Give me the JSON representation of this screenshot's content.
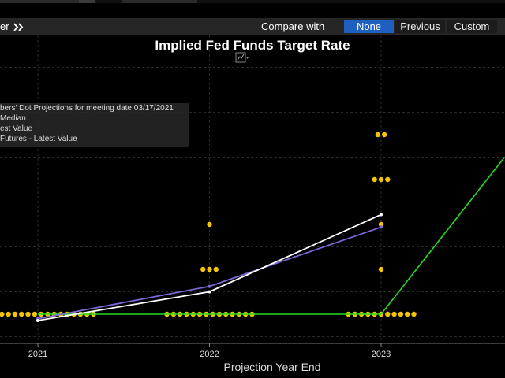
{
  "toolbar": {
    "left_text": "er",
    "nav_icon": "double-chevron-right-icon",
    "compare_label": "Compare with",
    "options": [
      {
        "label": "None",
        "active": true
      },
      {
        "label": "Previous",
        "active": false
      },
      {
        "label": "Custom",
        "active": false
      }
    ]
  },
  "chart_icon": "chart-mode-icon",
  "legend": {
    "items": [
      "bers' Dot Projections for meeting date 03/17/2021",
      "Median",
      "est Value",
      "Futures - Latest Value"
    ]
  },
  "colors": {
    "dots": "#f2c500",
    "median": "#7b68d8",
    "latest": "#ffffff",
    "futures": "#22dd22",
    "accent": "#1f5fbf"
  },
  "chart_data": {
    "type": "line",
    "title": "Implied Fed Funds Target Rate",
    "xlabel": "Projection Year End",
    "x_ticks": [
      "2021",
      "2022",
      "2023"
    ],
    "ylim": [
      0,
      1.75
    ],
    "y_gridlines": [
      0,
      0.25,
      0.5,
      0.75,
      1.0,
      1.25,
      1.5,
      1.75
    ],
    "dots": {
      "2021": [
        {
          "rate": 0.125,
          "count": 18
        }
      ],
      "2022": [
        {
          "rate": 0.125,
          "count": 14
        },
        {
          "rate": 0.375,
          "count": 3
        },
        {
          "rate": 0.625,
          "count": 1
        }
      ],
      "2023": [
        {
          "rate": 0.125,
          "count": 11
        },
        {
          "rate": 0.375,
          "count": 1
        },
        {
          "rate": 0.625,
          "count": 1
        },
        {
          "rate": 0.875,
          "count": 3
        },
        {
          "rate": 1.125,
          "count": 2
        }
      ]
    },
    "series": [
      {
        "key": "median",
        "points": [
          [
            2021,
            0.1
          ],
          [
            2022,
            0.28
          ],
          [
            2023,
            0.61
          ]
        ]
      },
      {
        "key": "latest",
        "points": [
          [
            2021,
            0.09
          ],
          [
            2022,
            0.25
          ],
          [
            2023,
            0.68
          ]
        ]
      },
      {
        "key": "futures",
        "points": [
          [
            2021,
            0.125
          ],
          [
            2022,
            0.125
          ],
          [
            2023,
            0.125
          ],
          [
            2023.72,
            1.0
          ]
        ]
      }
    ]
  },
  "x_axis_label": "Projection Year End"
}
